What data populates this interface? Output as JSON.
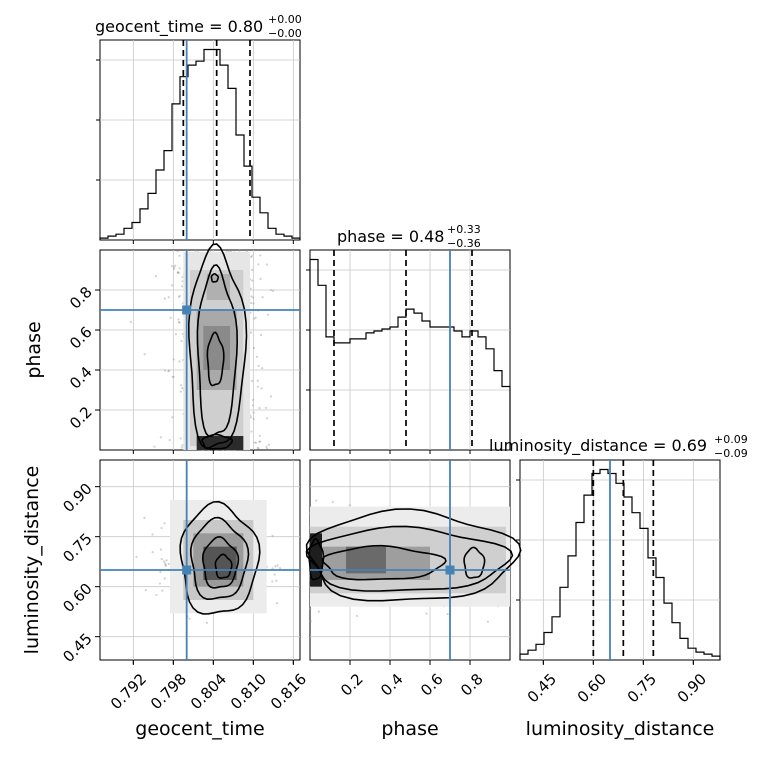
{
  "chart_data": {
    "type": "corner",
    "parameters": [
      "geocent_time",
      "phase",
      "luminosity_distance"
    ],
    "truths": {
      "geocent_time": 0.8,
      "phase": 0.7,
      "luminosity_distance": 0.65
    },
    "colors": {
      "truth": "#4682b4",
      "hist": "#000000",
      "grid": "#c8c8c8",
      "scatter": "#9a9a9a"
    },
    "titles": [
      {
        "param": "geocent_time",
        "text": "geocent_time = 0.80",
        "plus": "+0.00",
        "minus": "−0.00"
      },
      {
        "param": "phase",
        "text": "phase = 0.48",
        "plus": "+0.33",
        "minus": "−0.36"
      },
      {
        "param": "luminosity_distance",
        "text": "luminosity_distance = 0.69",
        "plus": "+0.09",
        "minus": "−0.09"
      }
    ],
    "ranges": {
      "geocent_time": [
        0.787,
        0.817
      ],
      "phase": [
        0.0,
        1.0
      ],
      "luminosity_distance": [
        0.38,
        0.98
      ]
    },
    "ticks": {
      "geocent_time": [
        0.792,
        0.798,
        0.804,
        0.81,
        0.816
      ],
      "phase": [
        0.2,
        0.4,
        0.6,
        0.8
      ],
      "luminosity_distance": [
        0.45,
        0.6,
        0.75,
        0.9
      ]
    },
    "tick_labels": {
      "geocent_time": [
        "0.792",
        "0.798",
        "0.804",
        "0.810",
        "0.816"
      ],
      "phase": [
        "0.2",
        "0.4",
        "0.6",
        "0.8"
      ],
      "luminosity_distance": [
        "0.45",
        "0.60",
        "0.75",
        "0.90"
      ]
    },
    "quantiles": {
      "geocent_time": [
        0.7995,
        0.8045,
        0.8095
      ],
      "phase": [
        0.12,
        0.48,
        0.81
      ],
      "luminosity_distance": [
        0.6,
        0.69,
        0.78
      ]
    },
    "histograms": {
      "geocent_time": [
        1,
        2,
        3,
        6,
        9,
        16,
        24,
        36,
        46,
        70,
        84,
        90,
        92,
        98,
        98,
        90,
        78,
        54,
        38,
        22,
        14,
        6,
        3,
        2,
        1
      ],
      "phase": [
        96,
        83,
        57,
        54,
        54,
        56,
        56,
        59,
        60,
        61,
        62,
        67,
        71,
        69,
        65,
        62,
        62,
        62,
        60,
        57,
        60,
        57,
        51,
        40,
        32
      ],
      "luminosity_distance": [
        3,
        5,
        8,
        14,
        22,
        37,
        53,
        70,
        84,
        95,
        97,
        95,
        90,
        83,
        75,
        67,
        52,
        42,
        29,
        19,
        11,
        6,
        4,
        3,
        2
      ]
    },
    "grid": true
  }
}
